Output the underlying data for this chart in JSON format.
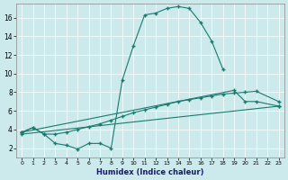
{
  "xlabel": "Humidex (Indice chaleur)",
  "background_color": "#cceaec",
  "line_color": "#1a7a6e",
  "xlim": [
    -0.5,
    23.5
  ],
  "ylim": [
    1,
    17.5
  ],
  "xticks": [
    0,
    1,
    2,
    3,
    4,
    5,
    6,
    7,
    8,
    9,
    10,
    11,
    12,
    13,
    14,
    15,
    16,
    17,
    18,
    19,
    20,
    21,
    22,
    23
  ],
  "yticks": [
    2,
    4,
    6,
    8,
    10,
    12,
    14,
    16
  ],
  "line1": {
    "x": [
      0,
      1,
      2,
      3,
      4,
      5,
      6,
      7,
      8,
      9,
      10,
      11,
      12,
      13,
      14,
      15,
      16,
      17,
      18
    ],
    "y": [
      3.7,
      4.2,
      3.5,
      2.5,
      2.3,
      1.9,
      2.5,
      2.5,
      2.0,
      9.3,
      13.0,
      16.3,
      16.5,
      17.0,
      17.2,
      17.0,
      15.5,
      13.5,
      10.5
    ]
  },
  "line2": {
    "x": [
      0,
      19,
      20,
      21,
      23
    ],
    "y": [
      3.7,
      8.2,
      7.0,
      7.0,
      6.5
    ]
  },
  "line3": {
    "x": [
      0,
      1,
      2,
      3,
      4,
      5,
      6,
      7,
      8,
      9,
      10,
      11,
      12,
      13,
      14,
      15,
      16,
      17,
      18,
      19,
      20,
      21,
      23
    ],
    "y": [
      3.7,
      4.2,
      3.5,
      3.5,
      3.7,
      4.0,
      4.3,
      4.6,
      5.0,
      5.4,
      5.8,
      6.1,
      6.4,
      6.7,
      7.0,
      7.2,
      7.4,
      7.6,
      7.8,
      7.9,
      8.0,
      8.1,
      7.0
    ]
  },
  "line4": {
    "x": [
      0,
      23
    ],
    "y": [
      3.5,
      6.5
    ]
  }
}
